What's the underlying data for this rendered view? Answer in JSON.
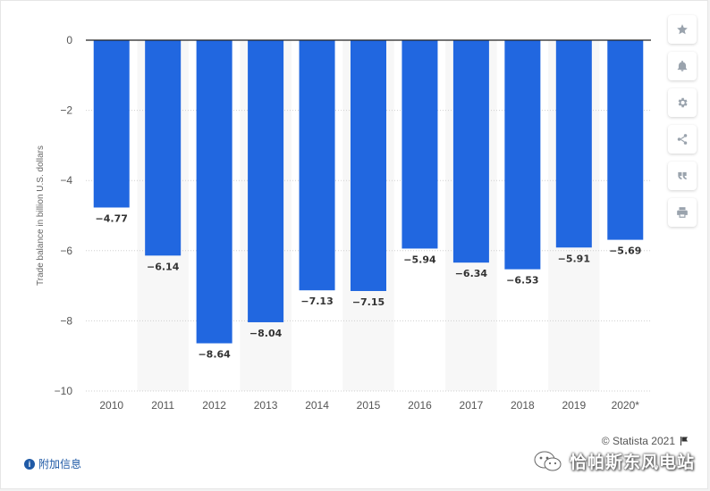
{
  "chart_data": {
    "type": "bar",
    "categories": [
      "2010",
      "2011",
      "2012",
      "2013",
      "2014",
      "2015",
      "2016",
      "2017",
      "2018",
      "2019",
      "2020*"
    ],
    "values": [
      -4.77,
      -6.14,
      -8.64,
      -8.04,
      -7.13,
      -7.15,
      -5.94,
      -6.34,
      -6.53,
      -5.91,
      -5.69
    ],
    "value_labels": [
      "−4.77",
      "−6.14",
      "−8.64",
      "−8.04",
      "−7.13",
      "−7.15",
      "−5.94",
      "−6.34",
      "−6.53",
      "−5.91",
      "−5.69"
    ],
    "yticks": [
      0,
      -2,
      -4,
      -6,
      -8,
      -10
    ],
    "ytick_labels": [
      "0",
      "−2",
      "−4",
      "−6",
      "−8",
      "−10"
    ],
    "ylim": [
      -10,
      0
    ],
    "ylabel": "Trade balance in billion U.S. dollars",
    "xlabel": "",
    "grid": true,
    "bar_color": "#2167e0"
  },
  "toolbar": {
    "buttons": [
      {
        "icon": "star-icon"
      },
      {
        "icon": "bell-icon"
      },
      {
        "icon": "gear-icon"
      },
      {
        "icon": "share-icon"
      },
      {
        "icon": "quote-icon"
      },
      {
        "icon": "print-icon"
      }
    ]
  },
  "footer": {
    "source": "© Statista 2021",
    "info_link": "附加信息",
    "watermark": "恰帕斯东风电站"
  }
}
